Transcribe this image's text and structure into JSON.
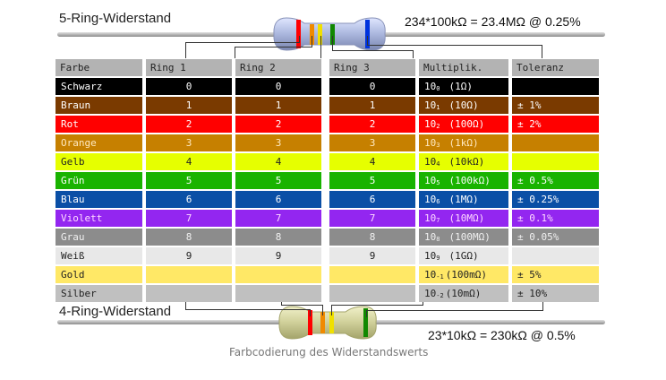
{
  "title5": "5-Ring-Widerstand",
  "formula5": "234*100kΩ = 23.4MΩ @ 0.25%",
  "title4": "4-Ring-Widerstand",
  "formula4": "23*10kΩ = 230kΩ @ 0.5%",
  "caption": "Farbcodierung des Widerstandswerts",
  "headers": [
    "Farbe",
    "Ring 1",
    "Ring 2",
    "Ring 3",
    "Multiplik.",
    "Toleranz"
  ],
  "rows": [
    {
      "name": "Schwarz",
      "bg": "#000000",
      "fg": "#ffffff",
      "r1": "0",
      "r2": "0",
      "r3": "0",
      "mult_base": "10",
      "mult_exp": "0",
      "mult_val": "(1Ω)",
      "tol": ""
    },
    {
      "name": "Braun",
      "bg": "#7a3a00",
      "fg": "#ffffff",
      "r1": "1",
      "r2": "1",
      "r3": "1",
      "mult_base": "10",
      "mult_exp": "1",
      "mult_val": "(10Ω)",
      "tol": "± 1%"
    },
    {
      "name": "Rot",
      "bg": "#ff0000",
      "fg": "#ffffff",
      "r1": "2",
      "r2": "2",
      "r3": "2",
      "mult_base": "10",
      "mult_exp": "2",
      "mult_val": "(100Ω)",
      "tol": "± 2%"
    },
    {
      "name": "Orange",
      "bg": "#c68000",
      "fg": "#ffe9c0",
      "r1": "3",
      "r2": "3",
      "r3": "3",
      "mult_base": "10",
      "mult_exp": "3",
      "mult_val": "(1kΩ)",
      "tol": ""
    },
    {
      "name": "Gelb",
      "bg": "#e6ff00",
      "fg": "#222222",
      "r1": "4",
      "r2": "4",
      "r3": "4",
      "mult_base": "10",
      "mult_exp": "4",
      "mult_val": "(10kΩ)",
      "tol": ""
    },
    {
      "name": "Grün",
      "bg": "#19b300",
      "fg": "#ffffff",
      "r1": "5",
      "r2": "5",
      "r3": "5",
      "mult_base": "10",
      "mult_exp": "5",
      "mult_val": "(100kΩ)",
      "tol": "± 0.5%"
    },
    {
      "name": "Blau",
      "bg": "#0a4fa6",
      "fg": "#ffffff",
      "r1": "6",
      "r2": "6",
      "r3": "6",
      "mult_base": "10",
      "mult_exp": "6",
      "mult_val": "(1MΩ)",
      "tol": "± 0.25%"
    },
    {
      "name": "Violett",
      "bg": "#9326f0",
      "fg": "#ffd9ff",
      "r1": "7",
      "r2": "7",
      "r3": "7",
      "mult_base": "10",
      "mult_exp": "7",
      "mult_val": "(10MΩ)",
      "tol": "± 0.1%"
    },
    {
      "name": "Grau",
      "bg": "#8c8c8c",
      "fg": "#f0f0f0",
      "r1": "8",
      "r2": "8",
      "r3": "8",
      "mult_base": "10",
      "mult_exp": "8",
      "mult_val": "(100MΩ)",
      "tol": "± 0.05%"
    },
    {
      "name": "Weiß",
      "bg": "#e8e8e8",
      "fg": "#222222",
      "r1": "9",
      "r2": "9",
      "r3": "9",
      "mult_base": "10",
      "mult_exp": "9",
      "mult_val": "(1GΩ)",
      "tol": ""
    },
    {
      "name": "Gold",
      "bg": "#ffe866",
      "fg": "#222222",
      "r1": "",
      "r2": "",
      "r3": "",
      "mult_base": "10",
      "mult_exp": "-1",
      "mult_val": "(100mΩ)",
      "tol": "±   5%"
    },
    {
      "name": "Silber",
      "bg": "#c0c0c0",
      "fg": "#222222",
      "r1": "",
      "r2": "",
      "r3": "",
      "mult_base": "10",
      "mult_exp": "-2",
      "mult_val": "(10mΩ)",
      "tol": "± 10%"
    }
  ],
  "colors": {
    "band_red": "#ff0000",
    "band_orange": "#f08a00",
    "band_yellow": "#f0e000",
    "band_green": "#118800",
    "band_blue": "#0033dd",
    "body5": "#aab6dd",
    "body4": "#cfcf99"
  }
}
